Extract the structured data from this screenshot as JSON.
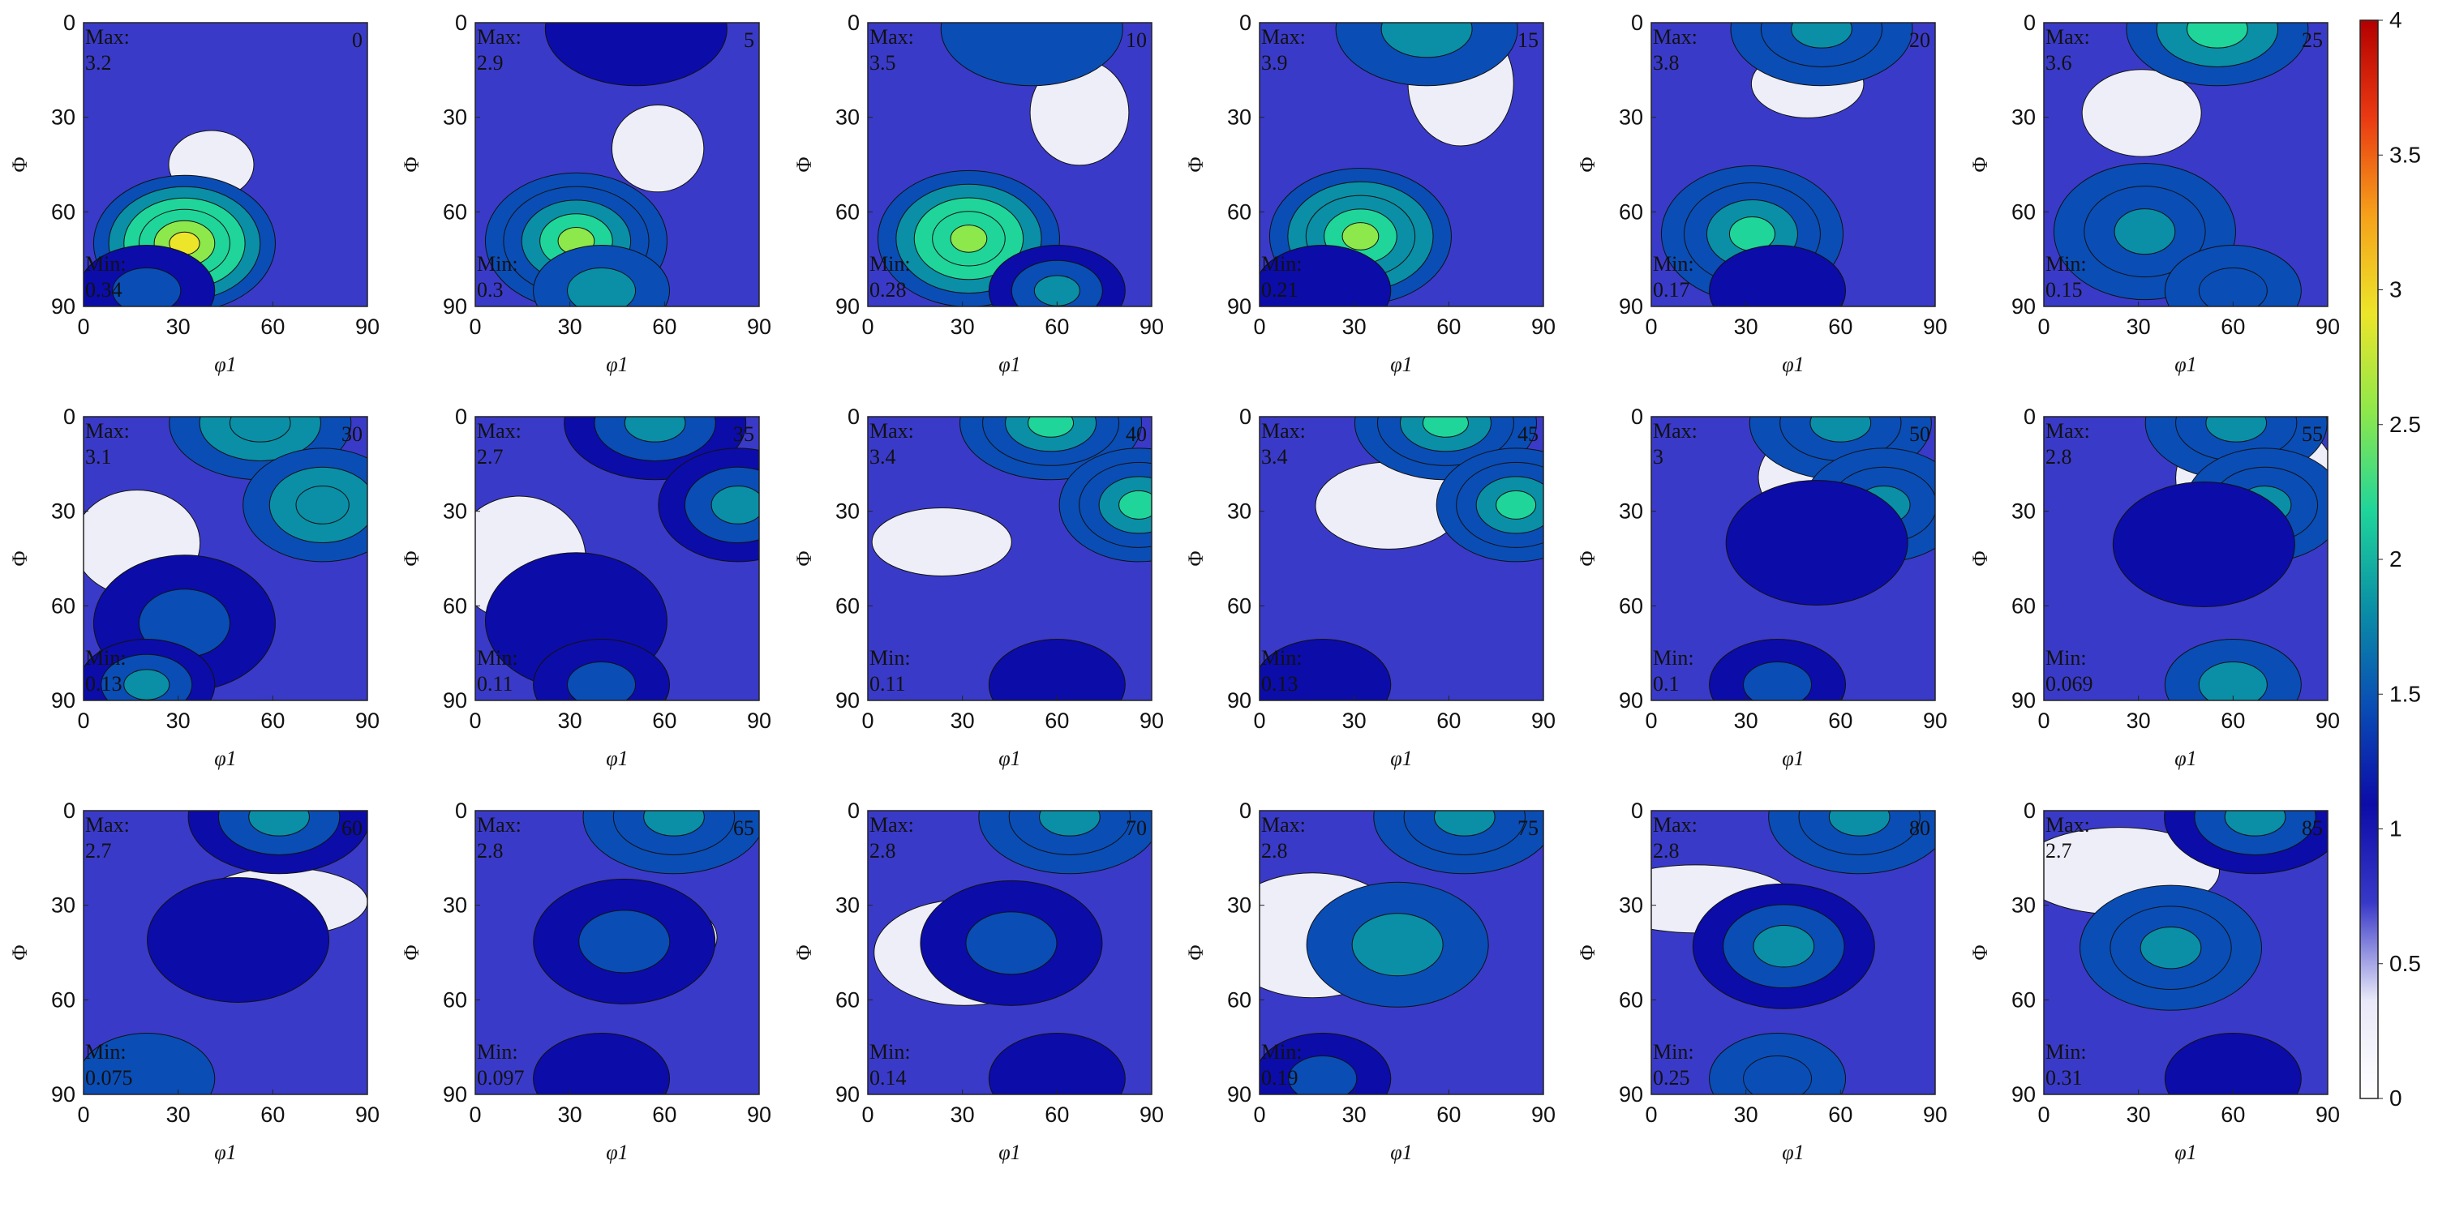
{
  "chart_data": {
    "type": "heatmap",
    "layout": "ODF sections (3 rows x 6 columns)",
    "xlabel": "φ1",
    "ylabel": "Φ",
    "x_ticks": [
      0,
      30,
      60,
      90
    ],
    "y_ticks": [
      0,
      30,
      60,
      90
    ],
    "xlim": [
      0,
      90
    ],
    "ylim": [
      90,
      0
    ],
    "max_label": "Max:",
    "min_label": "Min:",
    "colorbar": {
      "min": 0,
      "max": 4,
      "ticks": [
        "0",
        "0.5",
        "1",
        "1.5",
        "2",
        "2.5",
        "3",
        "3.5",
        "4"
      ],
      "stops": [
        "#ffffff",
        "#e8e8f8",
        "#3838c8",
        "#0c0ca8",
        "#0a4db5",
        "#0a8fa6",
        "#1fd59a",
        "#8de84b",
        "#ece52a",
        "#f6a21a",
        "#ea3a12",
        "#b30000"
      ]
    },
    "panels": [
      {
        "section": "0",
        "max": "3.2",
        "min": "0.34"
      },
      {
        "section": "5",
        "max": "2.9",
        "min": "0.3"
      },
      {
        "section": "10",
        "max": "3.5",
        "min": "0.28"
      },
      {
        "section": "15",
        "max": "3.9",
        "min": "0.21"
      },
      {
        "section": "20",
        "max": "3.8",
        "min": "0.17"
      },
      {
        "section": "25",
        "max": "3.6",
        "min": "0.15"
      },
      {
        "section": "30",
        "max": "3.1",
        "min": "0.13"
      },
      {
        "section": "35",
        "max": "2.7",
        "min": "0.11"
      },
      {
        "section": "40",
        "max": "3.4",
        "min": "0.11"
      },
      {
        "section": "45",
        "max": "3.4",
        "min": "0.13"
      },
      {
        "section": "50",
        "max": "3",
        "min": "0.1"
      },
      {
        "section": "55",
        "max": "2.8",
        "min": "0.069"
      },
      {
        "section": "60",
        "max": "2.7",
        "min": "0.075"
      },
      {
        "section": "65",
        "max": "2.8",
        "min": "0.097"
      },
      {
        "section": "70",
        "max": "2.8",
        "min": "0.14"
      },
      {
        "section": "75",
        "max": "2.8",
        "min": "0.19"
      },
      {
        "section": "80",
        "max": "2.8",
        "min": "0.25"
      },
      {
        "section": "85",
        "max": "2.7",
        "min": "0.31"
      }
    ]
  }
}
